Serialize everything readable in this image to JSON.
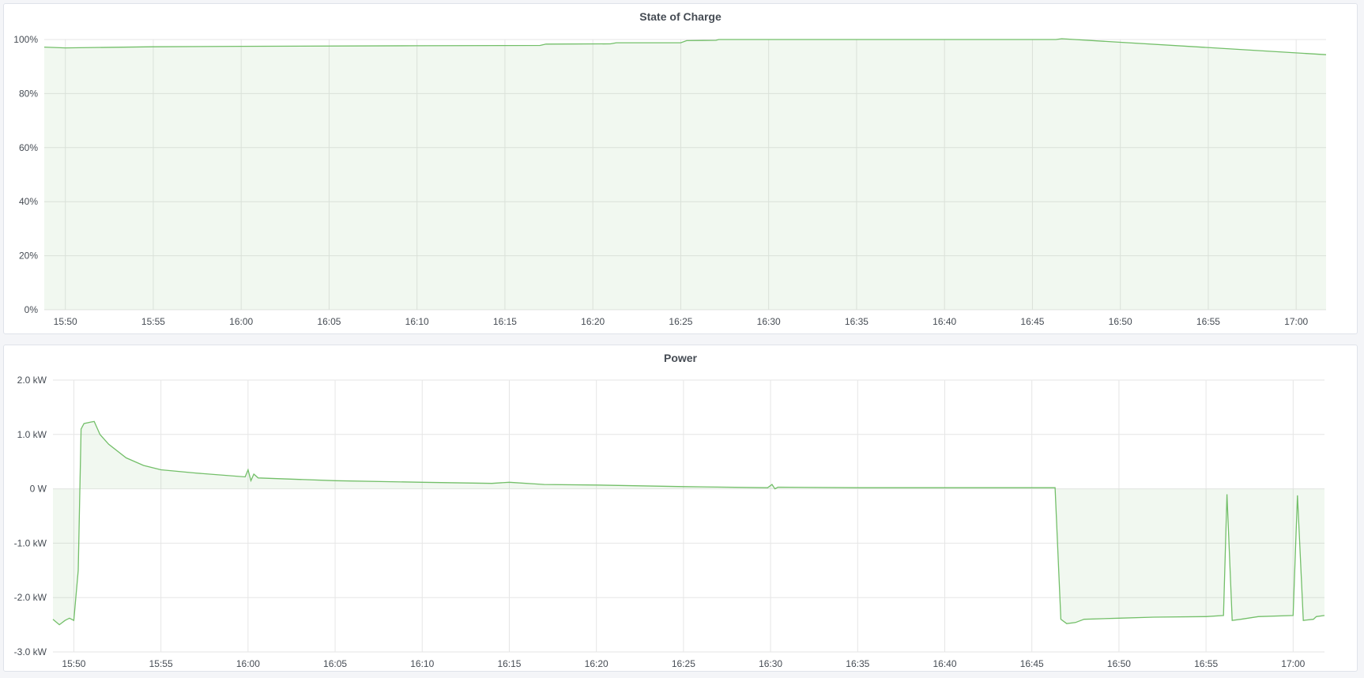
{
  "colors": {
    "line": "#73bf69",
    "fill": "rgba(115,191,105,0.10)",
    "grid": "#e6e6e6"
  },
  "chart_data": [
    {
      "type": "area",
      "title": "State of Charge",
      "xlim": [
        "15:48:48",
        "17:01:42"
      ],
      "ylim": [
        0,
        100
      ],
      "grid": true,
      "x_ticks": [
        "15:50",
        "15:55",
        "16:00",
        "16:05",
        "16:10",
        "16:15",
        "16:20",
        "16:25",
        "16:30",
        "16:35",
        "16:40",
        "16:45",
        "16:50",
        "16:55",
        "17:00"
      ],
      "y_ticks": [
        {
          "v": 0,
          "label": "0%"
        },
        {
          "v": 20,
          "label": "20%"
        },
        {
          "v": 40,
          "label": "40%"
        },
        {
          "v": 60,
          "label": "60%"
        },
        {
          "v": 80,
          "label": "80%"
        },
        {
          "v": 100,
          "label": "100%"
        }
      ],
      "series": [
        {
          "points": [
            [
              "15:48:48",
              97.2
            ],
            [
              "15:50:00",
              96.9
            ],
            [
              "15:55:00",
              97.3
            ],
            [
              "16:00:00",
              97.5
            ],
            [
              "16:10:00",
              97.7
            ],
            [
              "16:17:00",
              97.8
            ],
            [
              "16:17:20",
              98.3
            ],
            [
              "16:21:00",
              98.4
            ],
            [
              "16:21:20",
              98.8
            ],
            [
              "16:25:00",
              98.8
            ],
            [
              "16:25:20",
              99.6
            ],
            [
              "16:27:00",
              99.7
            ],
            [
              "16:27:10",
              100
            ],
            [
              "16:46:20",
              100
            ],
            [
              "16:46:40",
              100.3
            ],
            [
              "17:01:42",
              94.4
            ]
          ]
        }
      ]
    },
    {
      "type": "area",
      "title": "Power",
      "xlim": [
        "15:48:48",
        "17:01:48"
      ],
      "ylim": [
        -3,
        2
      ],
      "yunit": "kW",
      "grid": true,
      "x_ticks": [
        "15:50",
        "15:55",
        "16:00",
        "16:05",
        "16:10",
        "16:15",
        "16:20",
        "16:25",
        "16:30",
        "16:35",
        "16:40",
        "16:45",
        "16:50",
        "16:55",
        "17:00"
      ],
      "y_ticks": [
        {
          "v": 2,
          "label": "2.0 kW"
        },
        {
          "v": 1,
          "label": "1.0 kW"
        },
        {
          "v": 0,
          "label": "0 W"
        },
        {
          "v": -1,
          "label": "-1.0 kW"
        },
        {
          "v": -2,
          "label": "-2.0 kW"
        },
        {
          "v": -3,
          "label": "-3.0 kW"
        }
      ],
      "series": [
        {
          "points": [
            [
              "15:48:48",
              -2.4
            ],
            [
              "15:49:10",
              -2.5
            ],
            [
              "15:49:30",
              -2.42
            ],
            [
              "15:49:45",
              -2.38
            ],
            [
              "15:50:00",
              -2.42
            ],
            [
              "15:50:15",
              -1.5
            ],
            [
              "15:50:25",
              1.1
            ],
            [
              "15:50:35",
              1.2
            ],
            [
              "15:51:00",
              1.23
            ],
            [
              "15:51:10",
              1.24
            ],
            [
              "15:51:30",
              1.0
            ],
            [
              "15:52:00",
              0.82
            ],
            [
              "15:53:00",
              0.57
            ],
            [
              "15:54:00",
              0.43
            ],
            [
              "15:55:00",
              0.35
            ],
            [
              "15:57:00",
              0.29
            ],
            [
              "15:59:50",
              0.22
            ],
            [
              "16:00:00",
              0.35
            ],
            [
              "16:00:10",
              0.15
            ],
            [
              "16:00:20",
              0.27
            ],
            [
              "16:00:35",
              0.2
            ],
            [
              "16:05:00",
              0.15
            ],
            [
              "16:10:00",
              0.12
            ],
            [
              "16:14:00",
              0.1
            ],
            [
              "16:15:00",
              0.12
            ],
            [
              "16:17:00",
              0.08
            ],
            [
              "16:20:00",
              0.07
            ],
            [
              "16:25:00",
              0.04
            ],
            [
              "16:29:50",
              0.02
            ],
            [
              "16:30:05",
              0.08
            ],
            [
              "16:30:15",
              0.0
            ],
            [
              "16:30:25",
              0.03
            ],
            [
              "16:35:00",
              0.02
            ],
            [
              "16:46:20",
              0.02
            ],
            [
              "16:46:40",
              -2.4
            ],
            [
              "16:47:00",
              -2.48
            ],
            [
              "16:47:30",
              -2.46
            ],
            [
              "16:48:00",
              -2.4
            ],
            [
              "16:50:00",
              -2.38
            ],
            [
              "16:52:00",
              -2.36
            ],
            [
              "16:55:00",
              -2.35
            ],
            [
              "16:56:00",
              -2.33
            ],
            [
              "16:56:12",
              -0.1
            ],
            [
              "16:56:30",
              -2.42
            ],
            [
              "16:57:00",
              -2.4
            ],
            [
              "16:58:00",
              -2.35
            ],
            [
              "17:00:00",
              -2.33
            ],
            [
              "17:00:15",
              -0.12
            ],
            [
              "17:00:35",
              -2.42
            ],
            [
              "17:01:10",
              -2.4
            ],
            [
              "17:01:20",
              -2.35
            ],
            [
              "17:01:48",
              -2.33
            ]
          ]
        }
      ]
    }
  ]
}
